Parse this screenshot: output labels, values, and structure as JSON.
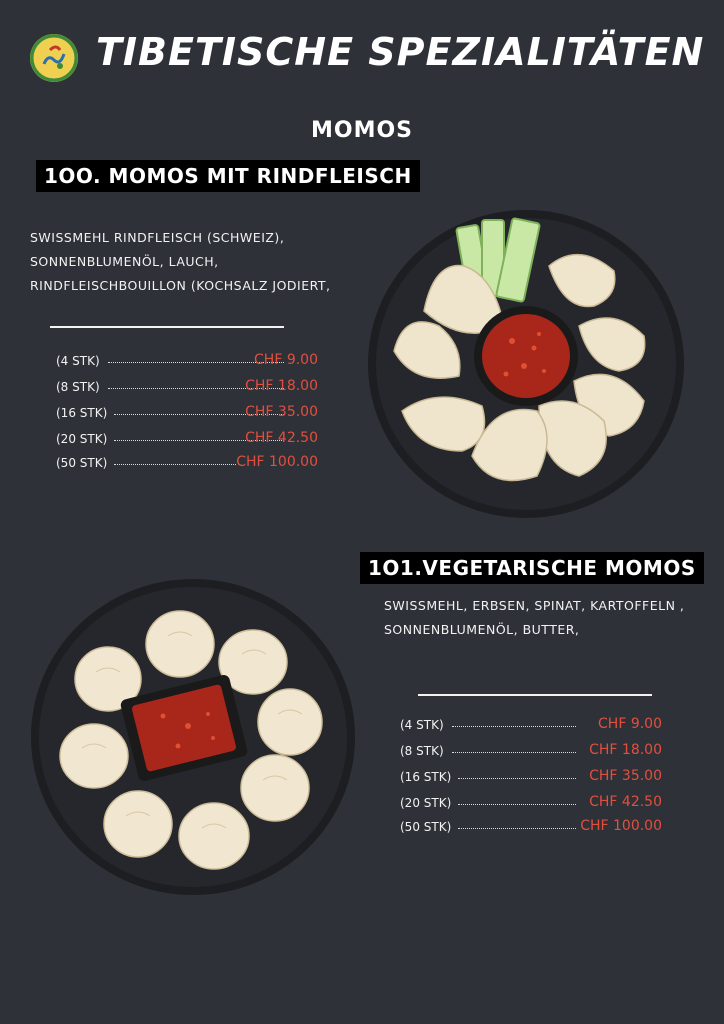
{
  "header": {
    "title": "TIBETISCHE SPEZIALITÄTEN"
  },
  "section": {
    "title": "MOMOS"
  },
  "dishes": [
    {
      "title": "1OO. MOMOS MIT RINDFLEISCH",
      "description": [
        "SWISSMEHL RINDFLEISCH  (SCHWEIZ),",
        "SONNENBLUMENÖL, LAUCH,",
        "RINDFLEISCHBOUILLON (KOCHSALZ JODIERT,"
      ],
      "prices": [
        {
          "qty": "(4 STK)",
          "price": "CHF 9.00"
        },
        {
          "qty": "(8 STK)",
          "price": "CHF 18.00"
        },
        {
          "qty": "(16 STK)",
          "price": "CHF 35.00"
        },
        {
          "qty": "(20 STK)",
          "price": "CHF 42.50"
        },
        {
          "qty": "(50 STK)",
          "price": "CHF 100.00"
        }
      ]
    },
    {
      "title": "1O1.VEGETARISCHE MOMOS",
      "description": [
        "SWISSMEHL, ERBSEN, SPINAT,  KARTOFFELN ,",
        "SONNENBLUMENÖL, BUTTER,"
      ],
      "prices": [
        {
          "qty": "(4 STK)",
          "price": "CHF 9.00"
        },
        {
          "qty": "(8 STK)",
          "price": "CHF 18.00"
        },
        {
          "qty": "(16 STK)",
          "price": "CHF 35.00"
        },
        {
          "qty": "(20 STK)",
          "price": "CHF 42.50"
        },
        {
          "qty": "(50 STK)",
          "price": "CHF 100.00"
        }
      ]
    }
  ],
  "colors": {
    "background": "#2f3138",
    "price": "#e0503f",
    "text": "#ffffff"
  },
  "icons": {
    "logo": "restaurant-logo",
    "photo1": "beef-momos-plate-photo",
    "photo2": "vegetarian-momos-plate-photo"
  }
}
